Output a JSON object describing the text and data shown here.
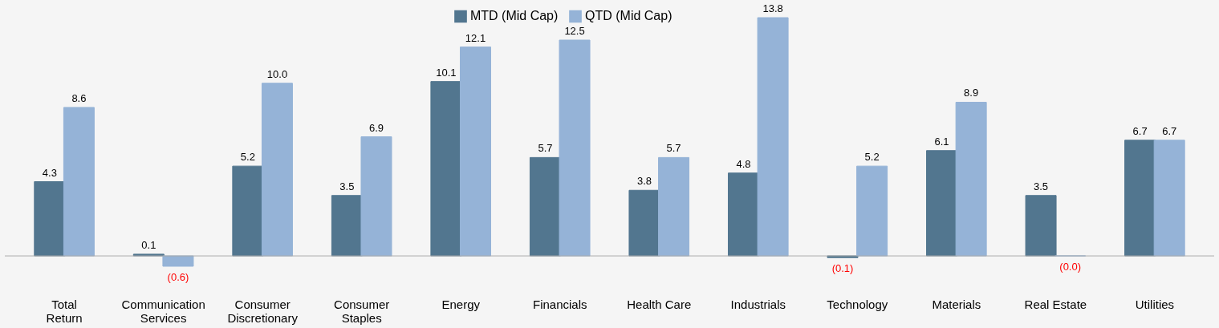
{
  "chart_data": {
    "type": "bar",
    "categories": [
      "Total\nReturn",
      "Communication\nServices",
      "Consumer\nDiscretionary",
      "Consumer\nStaples",
      "Energy",
      "Financials",
      "Health Care",
      "Industrials",
      "Technology",
      "Materials",
      "Real Estate",
      "Utilities"
    ],
    "series": [
      {
        "name": "MTD (Mid Cap)",
        "color": "#52768f",
        "values": [
          4.3,
          0.1,
          5.2,
          3.5,
          10.1,
          5.7,
          3.8,
          4.8,
          -0.1,
          6.1,
          3.5,
          6.7
        ],
        "value_labels": [
          "4.3",
          "0.1",
          "5.2",
          "3.5",
          "10.1",
          "5.7",
          "3.8",
          "4.8",
          "(0.1)",
          "6.1",
          "3.5",
          "6.7"
        ]
      },
      {
        "name": "QTD (Mid Cap)",
        "color": "#95b3d7",
        "values": [
          8.6,
          -0.6,
          10.0,
          6.9,
          12.1,
          12.5,
          5.7,
          13.8,
          5.2,
          8.9,
          -0.0,
          6.7
        ],
        "value_labels": [
          "8.6",
          "(0.6)",
          "10.0",
          "6.9",
          "12.1",
          "12.5",
          "5.7",
          "13.8",
          "5.2",
          "8.9",
          "(0.0)",
          "6.7"
        ]
      }
    ],
    "legend": "top",
    "grid": false
  }
}
